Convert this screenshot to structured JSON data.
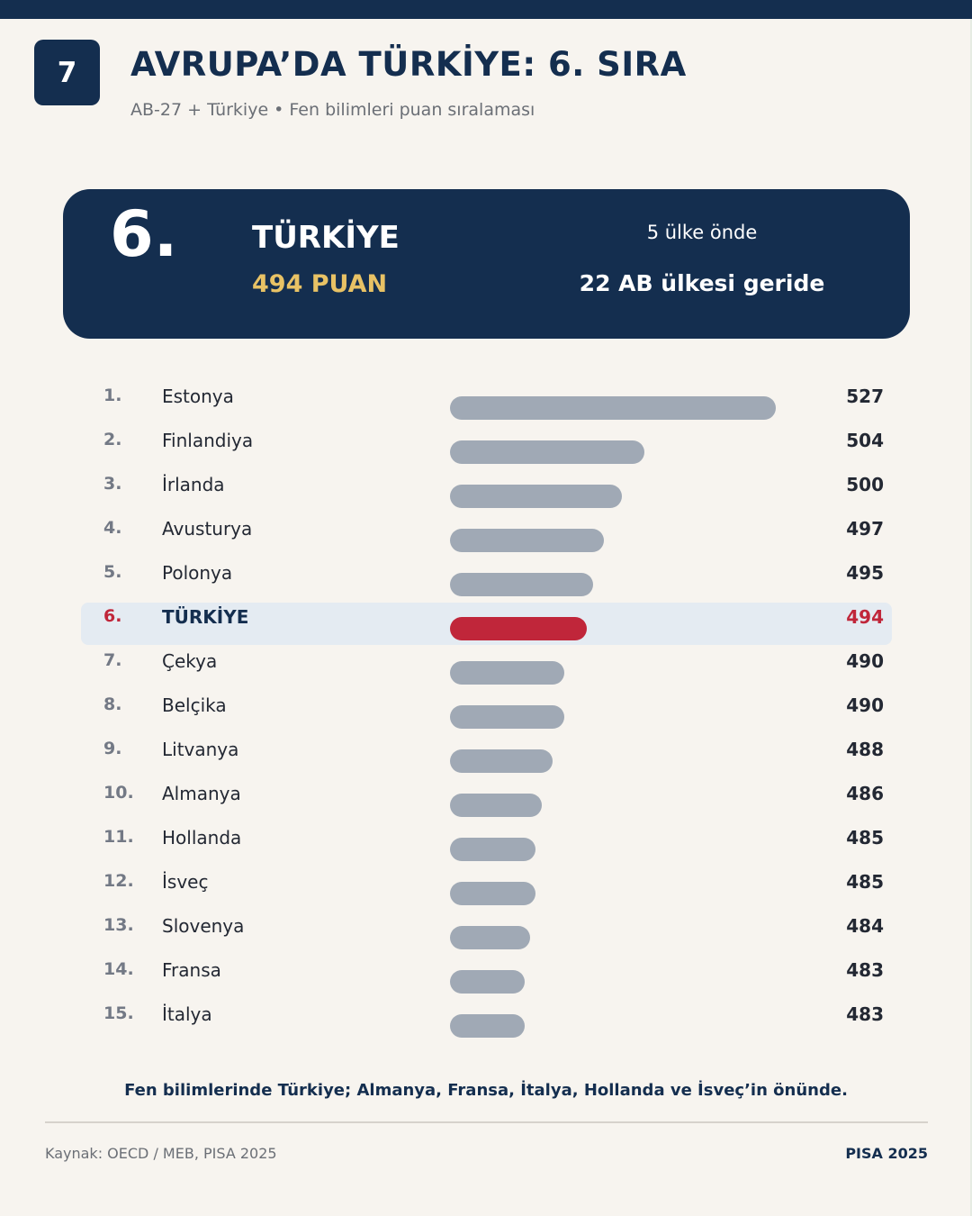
{
  "header": {
    "badge": "7",
    "title": "AVRUPA’DA TÜRKİYE: 6. SIRA",
    "subtitle": "AB-27 + Türkiye • Fen bilimleri puan sıralaması"
  },
  "hero": {
    "rank": "6.",
    "country": "TÜRKİYE",
    "score": "494 PUAN",
    "ahead": "5 ülke önde",
    "behind": "22 AB ülkesi geride"
  },
  "colors": {
    "navy": "#142e4f",
    "highlight_bar": "#c0263a",
    "default_bar": "#a0a9b5",
    "score_gold": "#e8c265",
    "highlight_row_bg": "#e4ebf2"
  },
  "chart_data": {
    "type": "bar",
    "orientation": "horizontal",
    "categories": [
      "Estonya",
      "Finlandiya",
      "İrlanda",
      "Avusturya",
      "Polonya",
      "TÜRKİYE",
      "Çekya",
      "Belçika",
      "Litvanya",
      "Almanya",
      "Hollanda",
      "İsveç",
      "Slovenya",
      "Fransa",
      "İtalya"
    ],
    "ranks": [
      "1.",
      "2.",
      "3.",
      "4.",
      "5.",
      "6.",
      "7.",
      "8.",
      "9.",
      "10.",
      "11.",
      "12.",
      "13.",
      "14.",
      "15."
    ],
    "values": [
      527,
      504,
      500,
      497,
      495,
      494,
      490,
      490,
      488,
      486,
      485,
      485,
      484,
      483,
      483
    ],
    "highlight_index": 5,
    "xlim": [
      470,
      527
    ]
  },
  "footer": {
    "takeaway": "Fen bilimlerinde Türkiye; Almanya, Fransa, İtalya, Hollanda ve İsveç’in önünde.",
    "source": "Kaynak: OECD / MEB, PISA 2025",
    "brand": "PISA 2025"
  }
}
